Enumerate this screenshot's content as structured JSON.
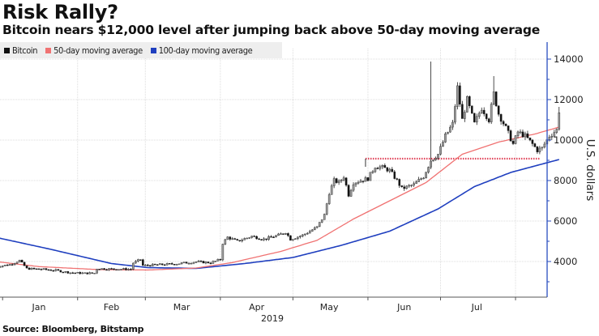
{
  "header": {
    "title": "Risk Rally?",
    "subtitle": "Bitcoin nears $12,000 level after jumping back above 50-day moving average"
  },
  "footer": {
    "source": "Source: Bloomberg, Bitstamp"
  },
  "chart_data": {
    "type": "candlestick+line",
    "title": "Risk Rally?",
    "subtitle": "Bitcoin nears $12,000 level after jumping back above 50-day moving average",
    "xlabel": "2019",
    "ylabel": "U.S. dollars",
    "ylim": [
      2800,
      14600
    ],
    "yticks": [
      4000,
      6000,
      8000,
      10000,
      12000,
      14000
    ],
    "ytick_labels": [
      "4000",
      "6000",
      "8000",
      "10000",
      "12000",
      "14000"
    ],
    "x_range_days": [
      -3,
      222
    ],
    "month_ticks_day": [
      0,
      31,
      59,
      90,
      120,
      151,
      181,
      212
    ],
    "month_labels": [
      {
        "label": "Jan",
        "day": 15
      },
      {
        "label": "Feb",
        "day": 45
      },
      {
        "label": "Mar",
        "day": 74
      },
      {
        "label": "Apr",
        "day": 105
      },
      {
        "label": "May",
        "day": 135
      },
      {
        "label": "Jun",
        "day": 166
      },
      {
        "label": "Jul",
        "day": 196
      }
    ],
    "year_label": "2019",
    "grid": true,
    "legend_position": "top-left",
    "legend": [
      {
        "name": "Bitcoin",
        "color": "#111111"
      },
      {
        "name": "50-day moving average",
        "color": "#f07272"
      },
      {
        "name": "100-day moving average",
        "color": "#1f3fbf"
      }
    ],
    "colors": {
      "bitcoin": "#111111",
      "ma50": "#f07272",
      "ma100": "#1f3fbf",
      "axis": "#2a4ebf",
      "grid": "#dddddd",
      "level_line": "#e0445a"
    },
    "bitcoin_close_keypoints": [
      {
        "day": -3,
        "close": 3750
      },
      {
        "day": 3,
        "close": 3850
      },
      {
        "day": 7,
        "close": 4050
      },
      {
        "day": 10,
        "close": 3650
      },
      {
        "day": 16,
        "close": 3620
      },
      {
        "day": 22,
        "close": 3560
      },
      {
        "day": 28,
        "close": 3450
      },
      {
        "day": 34,
        "close": 3420
      },
      {
        "day": 38,
        "close": 3430
      },
      {
        "day": 39,
        "close": 3650
      },
      {
        "day": 45,
        "close": 3630
      },
      {
        "day": 53,
        "close": 3620
      },
      {
        "day": 54,
        "close": 3930
      },
      {
        "day": 57,
        "close": 4100
      },
      {
        "day": 58,
        "close": 3800
      },
      {
        "day": 64,
        "close": 3840
      },
      {
        "day": 72,
        "close": 3890
      },
      {
        "day": 80,
        "close": 3990
      },
      {
        "day": 86,
        "close": 3940
      },
      {
        "day": 90,
        "close": 4100
      },
      {
        "day": 91,
        "close": 4900
      },
      {
        "day": 93,
        "close": 5200
      },
      {
        "day": 97,
        "close": 5000
      },
      {
        "day": 103,
        "close": 5250
      },
      {
        "day": 108,
        "close": 5100
      },
      {
        "day": 114,
        "close": 5300
      },
      {
        "day": 117,
        "close": 5450
      },
      {
        "day": 119,
        "close": 5100
      },
      {
        "day": 124,
        "close": 5300
      },
      {
        "day": 130,
        "close": 5700
      },
      {
        "day": 133,
        "close": 6300
      },
      {
        "day": 135,
        "close": 7400
      },
      {
        "day": 137,
        "close": 8000
      },
      {
        "day": 139,
        "close": 7900
      },
      {
        "day": 141,
        "close": 8200
      },
      {
        "day": 143,
        "close": 7300
      },
      {
        "day": 145,
        "close": 7900
      },
      {
        "day": 148,
        "close": 8000
      },
      {
        "day": 151,
        "close": 8100
      },
      {
        "day": 154,
        "close": 8700
      },
      {
        "day": 157,
        "close": 8650
      },
      {
        "day": 160,
        "close": 8500
      },
      {
        "day": 163,
        "close": 8000
      },
      {
        "day": 165,
        "close": 7600
      },
      {
        "day": 170,
        "close": 7800
      },
      {
        "day": 174,
        "close": 8200
      },
      {
        "day": 177,
        "close": 9000
      },
      {
        "day": 180,
        "close": 9300
      },
      {
        "day": 183,
        "close": 10200
      },
      {
        "day": 186,
        "close": 10800
      },
      {
        "day": 188,
        "close": 12600
      },
      {
        "day": 190,
        "close": 11000
      },
      {
        "day": 192,
        "close": 12000
      },
      {
        "day": 195,
        "close": 10800
      },
      {
        "day": 198,
        "close": 11600
      },
      {
        "day": 201,
        "close": 11000
      },
      {
        "day": 203,
        "close": 12300
      },
      {
        "day": 205,
        "close": 11300
      },
      {
        "day": 208,
        "close": 10600
      },
      {
        "day": 211,
        "close": 9800
      },
      {
        "day": 213,
        "close": 10400
      },
      {
        "day": 216,
        "close": 10200
      },
      {
        "day": 219,
        "close": 9800
      },
      {
        "day": 221,
        "close": 9500
      },
      {
        "day": 223,
        "close": 9600
      },
      {
        "day": 226,
        "close": 10200
      },
      {
        "day": 229,
        "close": 10500
      },
      {
        "day": 230,
        "close": 11450
      }
    ],
    "bitcoin_extreme_highs": [
      {
        "day": 177,
        "high": 13880
      },
      {
        "day": 203,
        "high": 13160
      },
      {
        "day": 230,
        "high": 11640
      }
    ],
    "ma50_keypoints": [
      {
        "day": -3,
        "close": 4000
      },
      {
        "day": 15,
        "close": 3750
      },
      {
        "day": 40,
        "close": 3600
      },
      {
        "day": 60,
        "close": 3580
      },
      {
        "day": 80,
        "close": 3680
      },
      {
        "day": 95,
        "close": 3950
      },
      {
        "day": 115,
        "close": 4500
      },
      {
        "day": 130,
        "close": 5050
      },
      {
        "day": 145,
        "close": 6100
      },
      {
        "day": 160,
        "close": 7000
      },
      {
        "day": 175,
        "close": 7900
      },
      {
        "day": 190,
        "close": 9300
      },
      {
        "day": 205,
        "close": 9900
      },
      {
        "day": 220,
        "close": 10300
      },
      {
        "day": 230,
        "close": 10640
      }
    ],
    "ma100_keypoints": [
      {
        "day": -3,
        "close": 5200
      },
      {
        "day": 20,
        "close": 4600
      },
      {
        "day": 45,
        "close": 3900
      },
      {
        "day": 60,
        "close": 3700
      },
      {
        "day": 80,
        "close": 3660
      },
      {
        "day": 100,
        "close": 3900
      },
      {
        "day": 120,
        "close": 4200
      },
      {
        "day": 140,
        "close": 4800
      },
      {
        "day": 160,
        "close": 5500
      },
      {
        "day": 180,
        "close": 6600
      },
      {
        "day": 195,
        "close": 7700
      },
      {
        "day": 210,
        "close": 8400
      },
      {
        "day": 230,
        "close": 9040
      }
    ],
    "level_line": {
      "value": 9080,
      "from_day": 150,
      "to_day": 222,
      "style": "dotted"
    }
  }
}
